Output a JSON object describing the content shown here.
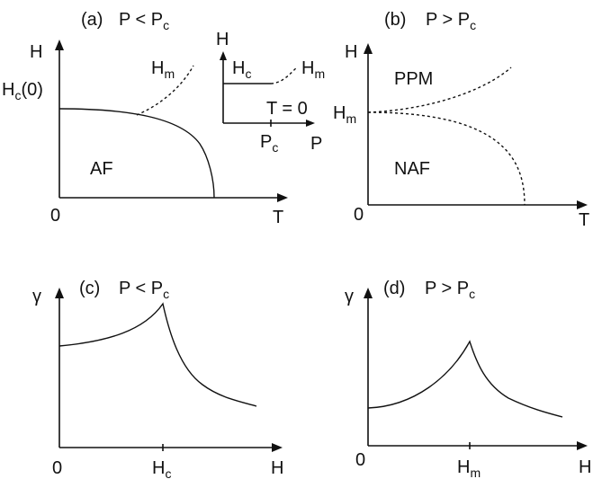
{
  "panels": {
    "a": {
      "title_letter": "(a)",
      "title_cond": "P < P",
      "title_sub": "c",
      "ylabel": "H",
      "xlabel": "T",
      "origin": "0",
      "hc0_main": "H",
      "hc0_sub": "c",
      "hc0_tail": "(0)",
      "hm_main": "H",
      "hm_sub": "m",
      "region": "AF"
    },
    "inset": {
      "ylabel": "H",
      "xlabel": "P",
      "hc_main": "H",
      "hc_sub": "c",
      "hm_main": "H",
      "hm_sub": "m",
      "t0": "T = 0",
      "pc_main": "P",
      "pc_sub": "c"
    },
    "b": {
      "title_letter": "(b)",
      "title_cond": "P > P",
      "title_sub": "c",
      "ylabel": "H",
      "xlabel": "T",
      "origin": "0",
      "hm_main": "H",
      "hm_sub": "m",
      "region_top": "PPM",
      "region_bottom": "NAF"
    },
    "c": {
      "title_letter": "(c)",
      "title_cond": "P < P",
      "title_sub": "c",
      "ylabel": "γ",
      "xlabel": "H",
      "origin": "0",
      "peak_main": "H",
      "peak_sub": "c"
    },
    "d": {
      "title_letter": "(d)",
      "title_cond": "P > P",
      "title_sub": "c",
      "ylabel": "γ",
      "xlabel": "H",
      "origin": "0",
      "peak_main": "H",
      "peak_sub": "m"
    }
  }
}
